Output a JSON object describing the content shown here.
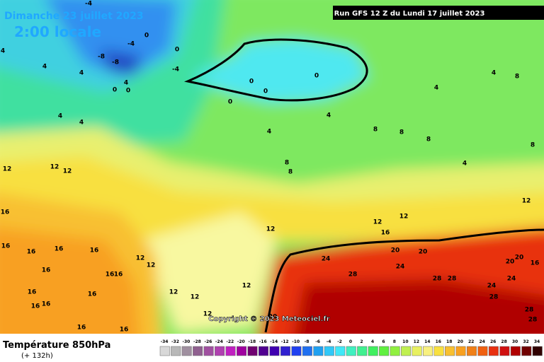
{
  "header": {
    "date": "Dimanche 23 juillet 2023",
    "time": "2:00 locale",
    "run": "Run GFS 12 Z du Lundi 17 juillet 2023"
  },
  "footer": {
    "title": "Température 850hPa",
    "lead": "(+ 132h)",
    "copyright": "Copyright © 2023 Meteociel.fr"
  },
  "scale": {
    "values": [
      -34,
      -32,
      -30,
      -28,
      -26,
      -24,
      -22,
      -20,
      -18,
      -16,
      -14,
      -12,
      -10,
      -8,
      -6,
      -4,
      -2,
      0,
      2,
      4,
      6,
      8,
      10,
      12,
      14,
      16,
      18,
      20,
      22,
      24,
      26,
      28,
      30,
      32,
      34
    ],
    "colors": [
      "#d8d8d8",
      "#b8b8b8",
      "#a090a0",
      "#906090",
      "#a050a0",
      "#b040b0",
      "#c020c0",
      "#a000a0",
      "#700070",
      "#500090",
      "#4000b0",
      "#3020d0",
      "#2040f0",
      "#2070f0",
      "#20a0f0",
      "#30c8f8",
      "#40e8f8",
      "#40f0c0",
      "#40f090",
      "#40f060",
      "#60f040",
      "#90f040",
      "#c0f050",
      "#e8f060",
      "#f8f080",
      "#f8e040",
      "#f8c030",
      "#f8a020",
      "#f08018",
      "#f06010",
      "#e83010",
      "#d01010",
      "#b00000",
      "#700000",
      "#300000"
    ]
  },
  "contour_labels": [
    -4,
    0,
    -4,
    -8,
    -8,
    0,
    -4,
    4,
    4,
    4,
    4,
    0,
    0,
    0,
    0,
    0,
    0,
    4,
    4,
    4,
    4,
    4,
    8,
    4,
    8,
    8,
    8,
    4,
    8,
    12,
    12,
    12,
    8,
    8,
    16,
    12,
    12,
    12,
    16,
    12,
    16,
    16,
    16,
    16,
    24,
    28,
    20,
    20,
    24,
    20,
    20,
    16,
    28,
    28,
    24,
    24,
    28,
    28,
    28,
    12,
    12,
    12,
    12,
    12,
    12,
    16,
    16,
    16,
    16,
    16,
    16,
    16,
    16,
    16,
    20
  ]
}
